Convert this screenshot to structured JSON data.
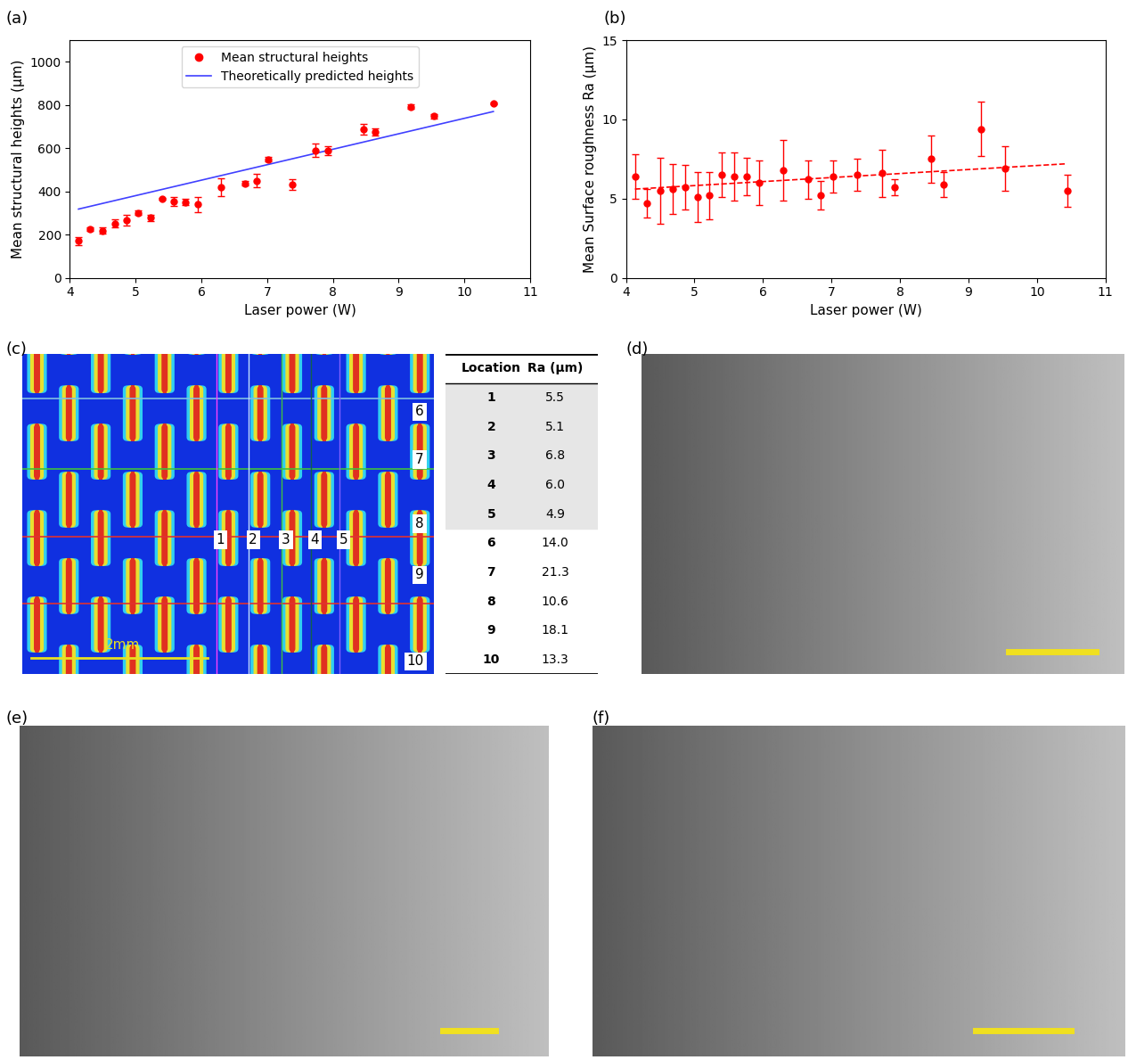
{
  "chart_data": [
    {
      "type": "scatter",
      "panel": "(a)",
      "x_label": "Laser power (W)",
      "y_label": "Mean structural heights (µm)",
      "xlim": [
        4,
        11
      ],
      "xticks": [
        4,
        5,
        6,
        7,
        8,
        9,
        10,
        11
      ],
      "ylim": [
        0,
        1100
      ],
      "yticks": [
        0,
        200,
        400,
        600,
        800,
        1000
      ],
      "legend": "upper center",
      "series": [
        {
          "name": "Mean structural heights",
          "type": "scatter",
          "color": "#ff0000",
          "marker": "o",
          "x": [
            4.13,
            4.3,
            4.5,
            4.68,
            4.86,
            5.04,
            5.22,
            5.4,
            5.58,
            5.76,
            5.94,
            6.3,
            6.66,
            6.84,
            7.02,
            7.38,
            7.74,
            7.92,
            8.46,
            8.64,
            9.18,
            9.54,
            10.44
          ],
          "values": [
            170,
            225,
            218,
            252,
            268,
            300,
            277,
            365,
            352,
            350,
            340,
            420,
            437,
            450,
            548,
            432,
            590,
            588,
            688,
            675,
            792,
            748,
            808
          ],
          "errors": [
            20,
            10,
            15,
            20,
            25,
            10,
            15,
            5,
            20,
            15,
            35,
            40,
            10,
            30,
            10,
            25,
            30,
            20,
            25,
            15,
            10,
            10,
            5
          ]
        },
        {
          "name": "Theoretically predicted heights",
          "type": "line",
          "color": "#4040ff",
          "line_style": "solid",
          "x": [
            4.13,
            10.44
          ],
          "values": [
            318,
            770
          ]
        }
      ]
    },
    {
      "type": "scatter",
      "panel": "(b)",
      "x_label": "Laser power (W)",
      "y_label": "Mean Surface roughness Ra (µm)",
      "xlim": [
        4,
        11
      ],
      "xticks": [
        4,
        5,
        6,
        7,
        8,
        9,
        10,
        11
      ],
      "ylim": [
        0,
        15
      ],
      "yticks": [
        0,
        5,
        10,
        15
      ],
      "series": [
        {
          "type": "scatter",
          "color": "#ff0000",
          "marker": "o",
          "x": [
            4.13,
            4.3,
            4.5,
            4.68,
            4.86,
            5.04,
            5.22,
            5.4,
            5.58,
            5.76,
            5.94,
            6.3,
            6.66,
            6.84,
            7.02,
            7.38,
            7.74,
            7.92,
            8.46,
            8.64,
            9.18,
            9.54,
            10.44
          ],
          "values": [
            6.4,
            4.7,
            5.5,
            5.6,
            5.7,
            5.1,
            5.2,
            6.5,
            6.4,
            6.4,
            6.0,
            6.8,
            6.2,
            5.2,
            6.4,
            6.5,
            6.6,
            5.7,
            7.5,
            5.9,
            9.4,
            6.9,
            5.5
          ],
          "errors": [
            1.4,
            0.9,
            2.1,
            1.6,
            1.4,
            1.6,
            1.5,
            1.4,
            1.5,
            1.2,
            1.4,
            1.9,
            1.2,
            0.9,
            1.0,
            1.0,
            1.5,
            0.5,
            1.5,
            0.8,
            1.7,
            1.4,
            1.0
          ]
        },
        {
          "type": "line",
          "color": "#ff0000",
          "line_style": "dashed",
          "x": [
            4.13,
            10.44
          ],
          "values": [
            5.6,
            7.2
          ]
        }
      ]
    }
  ],
  "image_c": {
    "panel": "(c)",
    "scale_bar": "2mm",
    "vertical_lines": [
      "1",
      "2",
      "3",
      "4",
      "5"
    ],
    "horizontal_lines": [
      "6",
      "7",
      "8",
      "9",
      "10"
    ]
  },
  "table_c": {
    "header": [
      "Location",
      "Ra (µm)"
    ],
    "rows": [
      [
        1,
        5.5
      ],
      [
        2,
        5.1
      ],
      [
        3,
        6.8
      ],
      [
        4,
        6.0
      ],
      [
        5,
        4.9
      ],
      [
        6,
        14.0
      ],
      [
        7,
        21.3
      ],
      [
        8,
        10.6
      ],
      [
        9,
        18.1
      ],
      [
        10,
        13.3
      ]
    ]
  },
  "micrographs": [
    "(d)",
    "(e)",
    "(f)"
  ]
}
